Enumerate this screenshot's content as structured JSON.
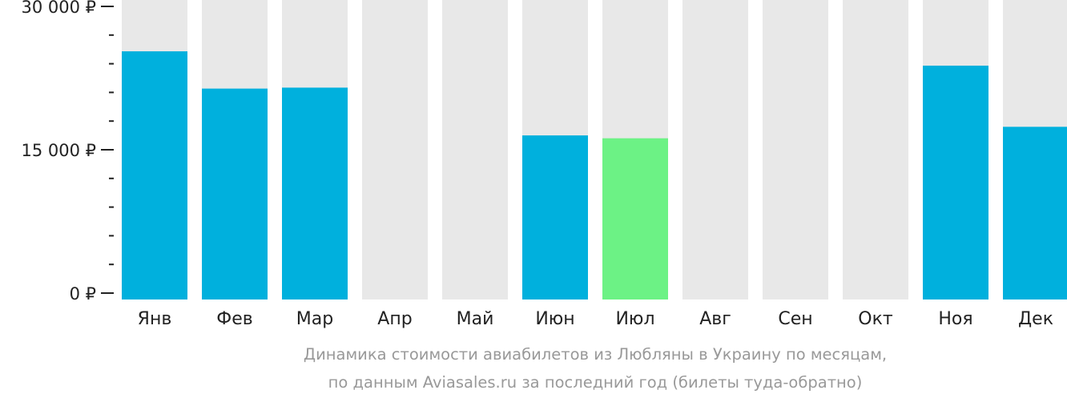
{
  "chart_data": {
    "type": "bar",
    "categories": [
      "Янв",
      "Фев",
      "Мар",
      "Апр",
      "Май",
      "Июн",
      "Июл",
      "Авг",
      "Сен",
      "Окт",
      "Ноя",
      "Дек"
    ],
    "values": [
      25300,
      21400,
      21500,
      null,
      null,
      16500,
      16200,
      null,
      null,
      null,
      23800,
      17400
    ],
    "highlight_index": 6,
    "ylim": [
      0,
      30000
    ],
    "yticks": [
      {
        "value": 0,
        "label": "0 ₽"
      },
      {
        "value": 15000,
        "label": "15 000 ₽"
      },
      {
        "value": 30000,
        "label": "30 000 ₽"
      }
    ],
    "minor_tick_step": 3000,
    "colors": {
      "bar": "#00b0dd",
      "highlight": "#6cf285",
      "background_bar": "#e8e8e8",
      "axis": "#222222"
    },
    "caption_lines": [
      "Динамика стоимости авиабилетов из Любляны в Украину по месяцам,",
      "по данным Aviasales.ru за последний год (билеты туда-обратно)"
    ]
  }
}
